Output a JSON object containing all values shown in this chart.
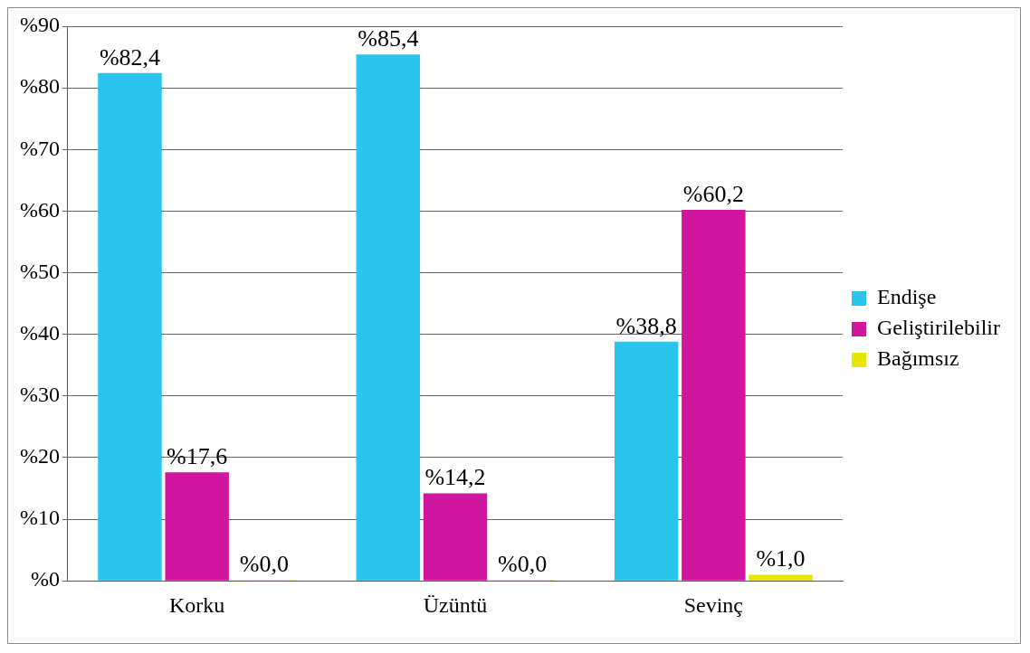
{
  "chart_data": {
    "type": "bar",
    "categories": [
      "Korku",
      "Üzüntü",
      "Sevinç"
    ],
    "series": [
      {
        "name": "Endişe",
        "color": "#29c5ec",
        "values": [
          82.4,
          85.4,
          38.8
        ],
        "value_labels": [
          "%82,4",
          "%85,4",
          "%38,8"
        ]
      },
      {
        "name": "Geliştirilebilir",
        "color": "#d0169e",
        "values": [
          17.6,
          14.2,
          60.2
        ],
        "value_labels": [
          "%17,6",
          "%14,2",
          "%60,2"
        ]
      },
      {
        "name": "Bağımsız",
        "color": "#e6e600",
        "values": [
          0.0,
          0.0,
          1.0
        ],
        "value_labels": [
          "%0,0",
          "%0,0",
          "%1,0"
        ]
      }
    ],
    "ylim": [
      0,
      90
    ],
    "yticks": [
      {
        "value": 0,
        "label": "%0"
      },
      {
        "value": 10,
        "label": "%10"
      },
      {
        "value": 20,
        "label": "%20"
      },
      {
        "value": 30,
        "label": "%30"
      },
      {
        "value": 40,
        "label": "%40"
      },
      {
        "value": 50,
        "label": "%50"
      },
      {
        "value": 60,
        "label": "%60"
      },
      {
        "value": 70,
        "label": "%70"
      },
      {
        "value": 80,
        "label": "%80"
      },
      {
        "value": 90,
        "label": "%90"
      }
    ],
    "grid": "y",
    "legend": "right"
  }
}
